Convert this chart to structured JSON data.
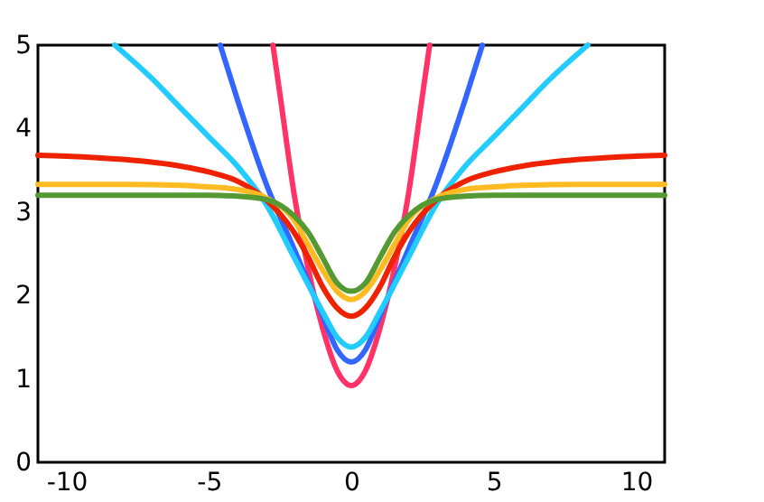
{
  "chart_data": {
    "type": "line",
    "xlim": [
      -11,
      11
    ],
    "ylim": [
      0,
      5
    ],
    "xticks": [
      -10,
      -5,
      0,
      5,
      10
    ],
    "yticks": [
      0,
      1,
      2,
      3,
      4,
      5
    ],
    "grid": false,
    "marker": "none",
    "line_style": "solid",
    "series": [
      {
        "color": "#ff3366",
        "x": [
          -2.75,
          -2.5,
          -2,
          -1.5,
          -1,
          -0.5,
          0,
          0.5,
          1,
          1.5,
          2,
          2.5,
          2.75
        ],
        "values": [
          5,
          4.4,
          3.2,
          2.3,
          1.6,
          1.1,
          0.92,
          1.1,
          1.6,
          2.3,
          3.2,
          4.4,
          5
        ]
      },
      {
        "color": "#3366ff",
        "x": [
          -4.6,
          -4,
          -3,
          -2,
          -1,
          -0.5,
          0,
          0.5,
          1,
          2,
          3,
          4,
          4.6
        ],
        "values": [
          5,
          4.35,
          3.35,
          2.55,
          1.75,
          1.35,
          1.2,
          1.35,
          1.75,
          2.55,
          3.35,
          4.35,
          5
        ]
      },
      {
        "color": "#22ccff",
        "x": [
          -8.3,
          -7,
          -6,
          -5,
          -4,
          -3,
          -2,
          -1,
          -0.5,
          0,
          0.5,
          1,
          2,
          3,
          4,
          5,
          6,
          7,
          8.3
        ],
        "values": [
          5,
          4.6,
          4.25,
          3.9,
          3.55,
          3.1,
          2.45,
          1.8,
          1.5,
          1.38,
          1.5,
          1.8,
          2.45,
          3.1,
          3.55,
          3.9,
          4.25,
          4.6,
          5
        ]
      },
      {
        "color": "#ee2200",
        "x": [
          -11,
          -10,
          -8,
          -6,
          -5,
          -4,
          -3,
          -2,
          -1.5,
          -1,
          -0.5,
          0,
          0.5,
          1,
          1.5,
          2,
          3,
          4,
          5,
          6,
          8,
          10,
          11
        ],
        "values": [
          3.68,
          3.67,
          3.63,
          3.55,
          3.48,
          3.37,
          3.15,
          2.75,
          2.45,
          2.1,
          1.85,
          1.75,
          1.85,
          2.1,
          2.45,
          2.75,
          3.15,
          3.37,
          3.48,
          3.55,
          3.63,
          3.67,
          3.68
        ]
      },
      {
        "color": "#ffbb22",
        "x": [
          -11,
          -8,
          -6,
          -5,
          -4,
          -3,
          -2,
          -1.5,
          -1,
          -0.5,
          0,
          0.5,
          1,
          1.5,
          2,
          3,
          4,
          5,
          6,
          8,
          11
        ],
        "values": [
          3.33,
          3.33,
          3.32,
          3.3,
          3.27,
          3.17,
          2.9,
          2.6,
          2.3,
          2.05,
          1.95,
          2.05,
          2.3,
          2.6,
          2.9,
          3.17,
          3.27,
          3.3,
          3.32,
          3.33,
          3.33
        ]
      },
      {
        "color": "#559933",
        "x": [
          -11,
          -6,
          -5,
          -4,
          -3,
          -2,
          -1.5,
          -1,
          -0.5,
          0,
          0.5,
          1,
          1.5,
          2,
          3,
          4,
          5,
          6,
          11
        ],
        "values": [
          3.2,
          3.2,
          3.2,
          3.19,
          3.15,
          2.95,
          2.75,
          2.45,
          2.15,
          2.05,
          2.15,
          2.45,
          2.75,
          2.95,
          3.15,
          3.19,
          3.2,
          3.2,
          3.2
        ]
      }
    ]
  }
}
